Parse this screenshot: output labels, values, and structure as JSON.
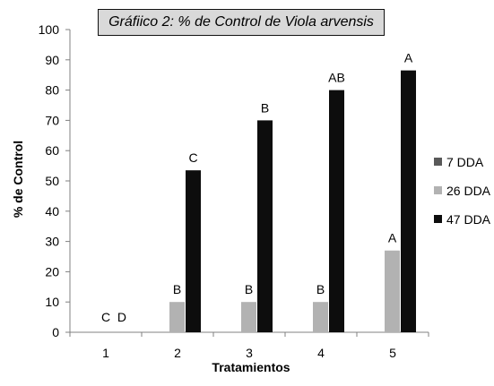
{
  "chart_data": {
    "type": "bar",
    "title_parts": [
      "Gráfiico 2: % de Control de ",
      "Viola arvensis"
    ],
    "xlabel": "Tratamientos",
    "ylabel": "% de Control",
    "categories": [
      "1",
      "2",
      "3",
      "4",
      "5"
    ],
    "ylim": [
      0,
      100
    ],
    "yticks": [
      "0",
      "10",
      "20",
      "30",
      "40",
      "50",
      "60",
      "70",
      "80",
      "90",
      "100"
    ],
    "grid": false,
    "legend_position": "right",
    "series": [
      {
        "name": "7 DDA",
        "color": "#595959",
        "values": [
          0,
          0,
          0,
          0,
          0
        ]
      },
      {
        "name": "26 DDA",
        "color": "#b2b2b2",
        "values": [
          0,
          10,
          10,
          10,
          27
        ]
      },
      {
        "name": "47 DDA",
        "color": "#0d0d0d",
        "values": [
          0,
          53.5,
          70,
          80,
          86.5
        ]
      }
    ],
    "annotations": [
      {
        "category": "1",
        "text": "C  D"
      },
      {
        "category": "2",
        "series": "26 DDA",
        "text": "B"
      },
      {
        "category": "2",
        "series": "47 DDA",
        "text": "C"
      },
      {
        "category": "3",
        "series": "26 DDA",
        "text": "B"
      },
      {
        "category": "3",
        "series": "47 DDA",
        "text": "B"
      },
      {
        "category": "4",
        "series": "26 DDA",
        "text": "B"
      },
      {
        "category": "4",
        "series": "47 DDA",
        "text": "AB"
      },
      {
        "category": "5",
        "series": "26 DDA",
        "text": "A"
      },
      {
        "category": "5",
        "series": "47 DDA",
        "text": "A"
      }
    ]
  }
}
